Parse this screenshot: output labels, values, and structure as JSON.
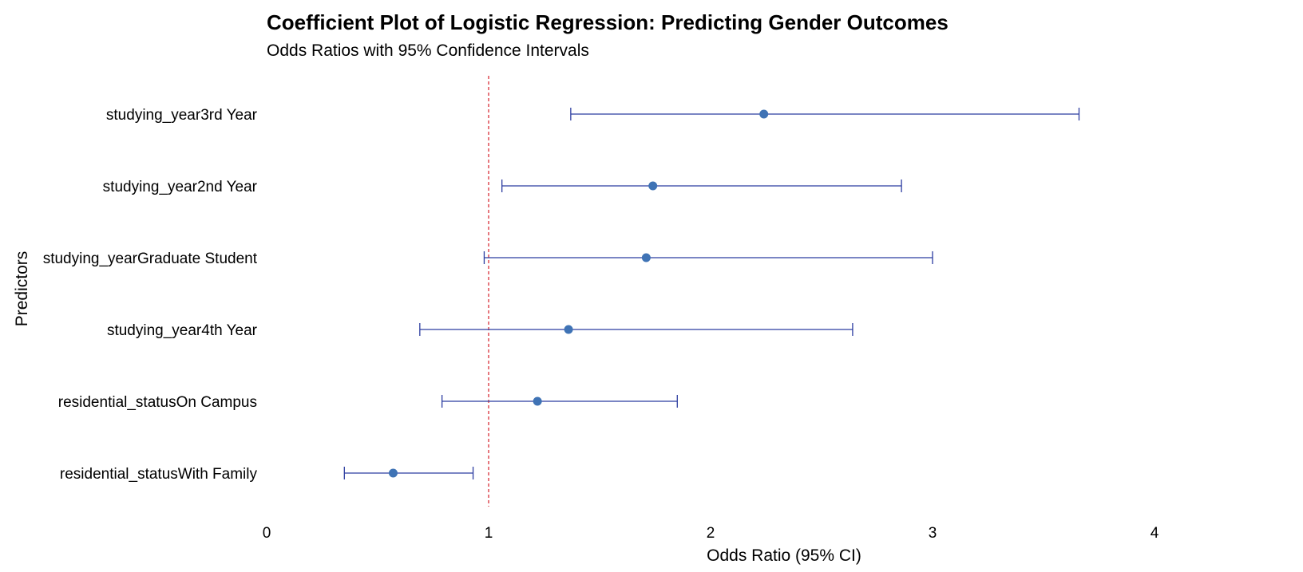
{
  "chart_data": {
    "type": "scatter",
    "variant": "coefficient-plot",
    "title": "Coefficient Plot of Logistic Regression: Predicting Gender Outcomes",
    "subtitle": "Odds Ratios with 95% Confidence Intervals",
    "xlabel": "Odds Ratio (95% CI)",
    "ylabel": "Predictors",
    "xlim": [
      0,
      4.75
    ],
    "xticks": [
      0,
      1,
      2,
      3,
      4
    ],
    "reference_line": 1,
    "grid": false,
    "colors": {
      "point": "#3F73B5",
      "interval": "#2B3CA0",
      "reference_line": "#D9303A"
    },
    "points": [
      {
        "label": "studying_year3rd Year",
        "estimate": 2.24,
        "lower": 1.37,
        "upper": 3.66
      },
      {
        "label": "studying_year2nd Year",
        "estimate": 1.74,
        "lower": 1.06,
        "upper": 2.86
      },
      {
        "label": "studying_yearGraduate Student",
        "estimate": 1.71,
        "lower": 0.98,
        "upper": 3.0
      },
      {
        "label": "studying_year4th Year",
        "estimate": 1.36,
        "lower": 0.69,
        "upper": 2.64
      },
      {
        "label": "residential_statusOn Campus",
        "estimate": 1.22,
        "lower": 0.79,
        "upper": 1.85
      },
      {
        "label": "residential_statusWith Family",
        "estimate": 0.57,
        "lower": 0.35,
        "upper": 0.93
      }
    ]
  }
}
